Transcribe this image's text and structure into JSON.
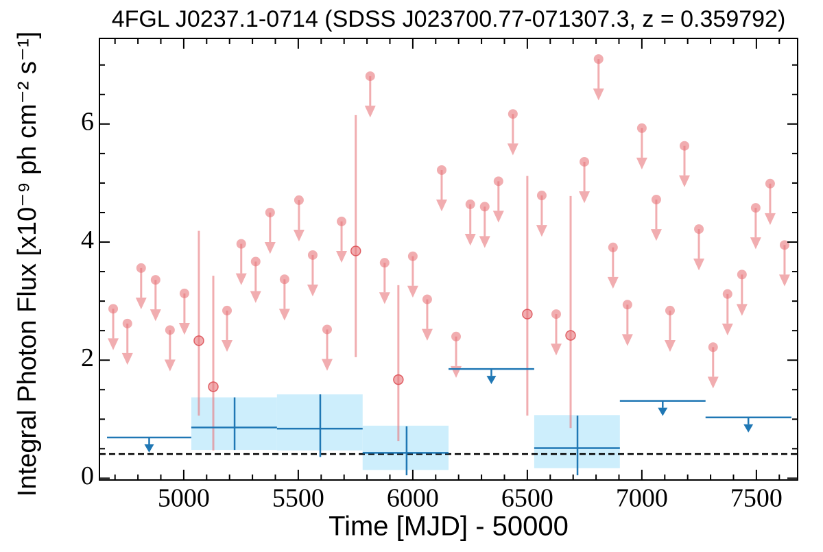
{
  "chart_data": {
    "type": "scatter",
    "title": "4FGL J0237.1-0714 (SDSS J023700.77-071307.3, z = 0.359792)",
    "x_label": "Time [MJD] - 50000",
    "y_label": "Integral Photon Flux [x10⁻⁹ ph cm⁻² s⁻¹]",
    "xlim": [
      4632,
      7680
    ],
    "ylim": [
      -0.03,
      7.45
    ],
    "xticks": [
      5000,
      5500,
      6000,
      6500,
      7000,
      7500
    ],
    "yticks": [
      0,
      2,
      4,
      6
    ],
    "xminorticks": [
      4700,
      4800,
      4900,
      5100,
      5200,
      5300,
      5400,
      5600,
      5700,
      5800,
      5900,
      6100,
      6200,
      6300,
      6400,
      6600,
      6700,
      6800,
      6900,
      7100,
      7200,
      7300,
      7400,
      7600
    ],
    "yminorticks": [
      0.5,
      1,
      1.5,
      2.5,
      3,
      3.5,
      4.5,
      5,
      5.5,
      6.5,
      7
    ],
    "reference_line": 0.41,
    "series": [
      {
        "color": "#e8777c",
        "x": [
          4692,
          4754,
          4814,
          4877,
          4940,
          5003,
          5066,
          5129,
          5189,
          5251,
          5314,
          5377,
          5440,
          5503,
          5563,
          5626,
          5689,
          5751,
          5814,
          5877,
          5937,
          6000,
          6063,
          6126,
          6189,
          6251,
          6314,
          6374,
          6437,
          6500,
          6563,
          6626,
          6689,
          6749,
          6811,
          6874,
          6937,
          7000,
          7063,
          7123,
          7186,
          7249,
          7311,
          7374,
          7437,
          7497,
          7560,
          7623
        ],
        "values": [
          2.87,
          2.62,
          3.56,
          3.36,
          2.51,
          3.13,
          2.33,
          1.55,
          2.84,
          3.97,
          3.67,
          4.5,
          3.37,
          4.71,
          3.78,
          2.52,
          4.35,
          3.85,
          6.81,
          3.65,
          1.67,
          3.76,
          3.03,
          5.22,
          2.4,
          4.64,
          4.6,
          5.03,
          6.17,
          2.78,
          4.79,
          2.78,
          2.42,
          5.36,
          7.1,
          3.91,
          2.94,
          5.93,
          4.72,
          2.84,
          5.63,
          4.22,
          2.22,
          3.12,
          3.45,
          4.58,
          4.99,
          3.95
        ],
        "err_low": [
          null,
          null,
          null,
          null,
          null,
          null,
          1.06,
          0.47,
          null,
          null,
          null,
          null,
          null,
          null,
          null,
          null,
          null,
          2.05,
          null,
          null,
          0.63,
          null,
          null,
          null,
          null,
          null,
          null,
          null,
          null,
          1.06,
          null,
          null,
          0.85,
          null,
          null,
          null,
          null,
          null,
          null,
          null,
          null,
          null,
          null,
          null,
          null,
          null,
          null,
          null
        ],
        "err_high": [
          null,
          null,
          null,
          null,
          null,
          null,
          4.19,
          3.43,
          null,
          null,
          null,
          null,
          null,
          null,
          null,
          null,
          null,
          6.15,
          null,
          null,
          3.27,
          null,
          null,
          null,
          null,
          null,
          null,
          null,
          null,
          5.12,
          null,
          null,
          4.78,
          null,
          null,
          null,
          null,
          null,
          null,
          null,
          null,
          null,
          null,
          null,
          null,
          null,
          null,
          null
        ]
      },
      {
        "color": "#1f77b4",
        "band_color": "#cdeefc",
        "x_low": [
          4665,
          5033,
          5407,
          5781,
          6156,
          6530,
          6904,
          7278
        ],
        "x_high": [
          5033,
          5407,
          5781,
          6156,
          6530,
          6904,
          7278,
          7653
        ],
        "x": [
          4849,
          5222,
          5596,
          5973,
          6343,
          6719,
          7091,
          7465
        ],
        "values": [
          0.69,
          0.86,
          0.84,
          0.43,
          1.85,
          0.51,
          1.31,
          1.03
        ],
        "err_low": [
          null,
          0.48,
          0.36,
          0.05,
          null,
          0.05,
          null,
          null
        ],
        "err_high": [
          null,
          1.37,
          1.42,
          0.88,
          null,
          1.06,
          null,
          null
        ],
        "band_low": [
          null,
          0.48,
          0.47,
          0.14,
          null,
          0.17,
          null,
          null
        ],
        "band_high": [
          null,
          1.37,
          1.42,
          0.89,
          null,
          1.07,
          null,
          null
        ]
      }
    ]
  }
}
